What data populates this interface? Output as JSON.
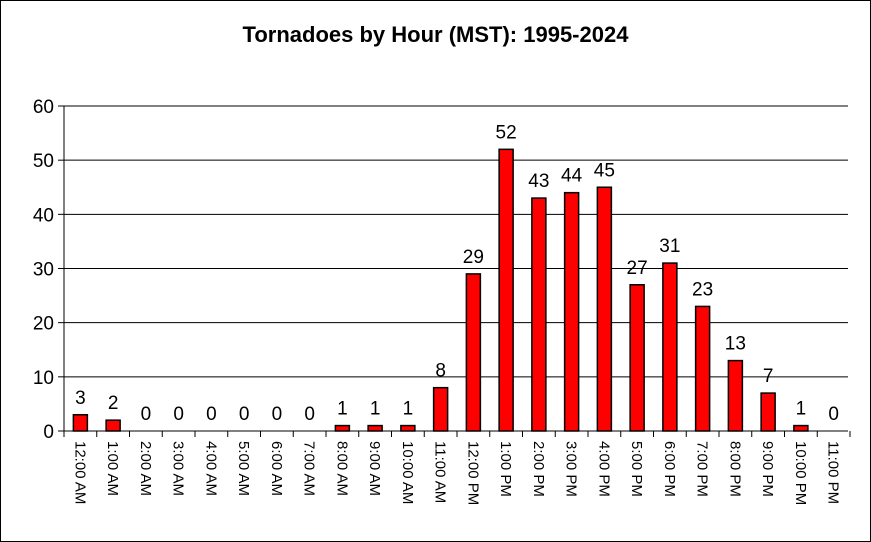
{
  "chart_data": {
    "type": "bar",
    "title": "Tornadoes by Hour (MST): 1995-2024",
    "xlabel": "",
    "ylabel": "",
    "categories": [
      "12:00 AM",
      "1:00 AM",
      "2:00 AM",
      "3:00 AM",
      "4:00 AM",
      "5:00 AM",
      "6:00 AM",
      "7:00 AM",
      "8:00 AM",
      "9:00 AM",
      "10:00 AM",
      "11:00 AM",
      "12:00 PM",
      "1:00 PM",
      "2:00 PM",
      "3:00 PM",
      "4:00 PM",
      "5:00 PM",
      "6:00 PM",
      "7:00 PM",
      "8:00 PM",
      "9:00 PM",
      "10:00 PM",
      "11:00 PM"
    ],
    "values": [
      3,
      2,
      0,
      0,
      0,
      0,
      0,
      0,
      1,
      1,
      1,
      8,
      29,
      52,
      43,
      44,
      45,
      27,
      31,
      23,
      13,
      7,
      1,
      0
    ],
    "ylim": [
      0,
      60
    ],
    "yticks": [
      0,
      10,
      20,
      30,
      40,
      50,
      60
    ],
    "grid": true,
    "legend": "none",
    "bar_color": "#ff0000",
    "data_labels": true
  }
}
